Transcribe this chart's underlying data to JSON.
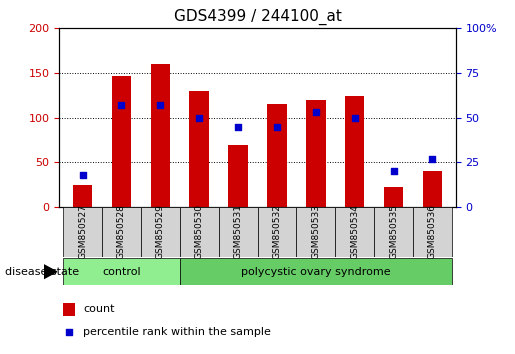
{
  "title": "GDS4399 / 244100_at",
  "samples": [
    "GSM850527",
    "GSM850528",
    "GSM850529",
    "GSM850530",
    "GSM850531",
    "GSM850532",
    "GSM850533",
    "GSM850534",
    "GSM850535",
    "GSM850536"
  ],
  "counts": [
    25,
    147,
    160,
    130,
    70,
    115,
    120,
    124,
    22,
    40
  ],
  "percentiles": [
    18,
    57,
    57,
    50,
    45,
    45,
    53,
    50,
    20,
    27
  ],
  "group_configs": [
    {
      "indices": [
        0,
        1,
        2
      ],
      "label": "control",
      "color": "#90EE90"
    },
    {
      "indices": [
        3,
        4,
        5,
        6,
        7,
        8,
        9
      ],
      "label": "polycystic ovary syndrome",
      "color": "#66CC66"
    }
  ],
  "ylim_left": [
    0,
    200
  ],
  "ylim_right": [
    0,
    100
  ],
  "yticks_left": [
    0,
    50,
    100,
    150,
    200
  ],
  "yticks_right": [
    0,
    25,
    50,
    75,
    100
  ],
  "ytick_right_labels": [
    "0",
    "25",
    "50",
    "75",
    "100%"
  ],
  "bar_color": "#CC0000",
  "dot_color": "#0000CC",
  "bar_width": 0.5,
  "plot_bg": "#FFFFFF",
  "legend_count_label": "count",
  "legend_pct_label": "percentile rank within the sample",
  "disease_state_label": "disease state",
  "left_tick_color": "#CC0000",
  "right_tick_color": "#0000CC",
  "sample_box_color": "#D3D3D3",
  "title_size": 11,
  "axis_tick_size": 8
}
